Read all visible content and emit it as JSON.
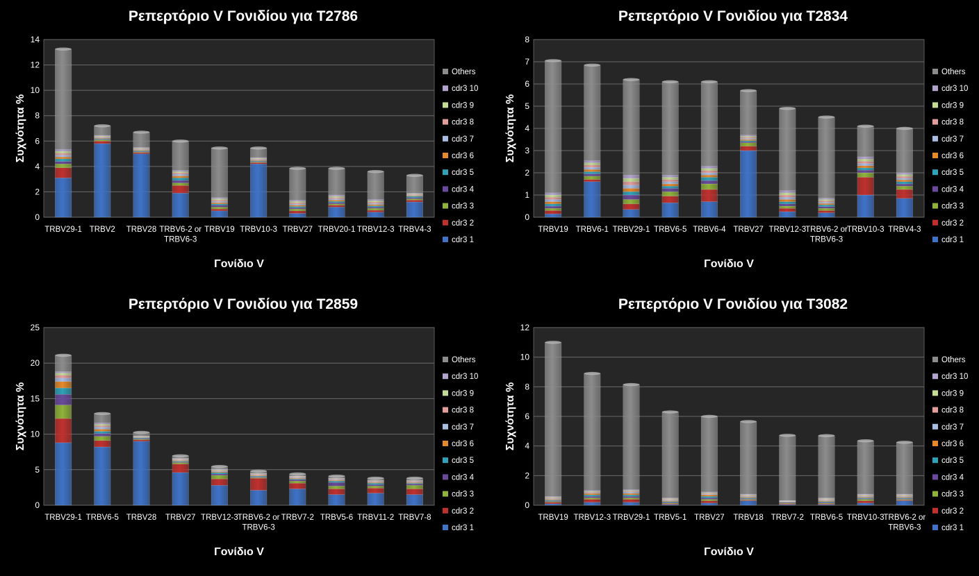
{
  "colors": {
    "cdr3 1": "#3f73c8",
    "cdr3 2": "#c0312e",
    "cdr3 3": "#8fb33a",
    "cdr3 4": "#6a4a9c",
    "cdr3 5": "#2fa2b8",
    "cdr3 6": "#e6892a",
    "cdr3 7": "#a9bde3",
    "cdr3 8": "#e39e9b",
    "cdr3 9": "#c4dc96",
    "cdr3 10": "#b3a4cf",
    "Others": "#8c8c8c"
  },
  "legend": [
    "Others",
    "cdr3 10",
    "cdr3 9",
    "cdr3 8",
    "cdr3 7",
    "cdr3 6",
    "cdr3 5",
    "cdr3 4",
    "cdr3 3",
    "cdr3 2",
    "cdr3 1"
  ],
  "chart_data": [
    {
      "type": "bar",
      "stacked": true,
      "title": "Ρεπερτόριο V Γονιδίου για Τ2786",
      "xlabel": "Γονίδιο V",
      "ylabel": "Συχνότητα %",
      "ylim": [
        0,
        14
      ],
      "yticks": [
        0,
        2,
        4,
        6,
        8,
        10,
        12,
        14
      ],
      "grid": true,
      "legend_position": "right",
      "categories": [
        "TRBV29-1",
        "TRBV2",
        "TRBV28",
        "TRBV6-2 or TRBV6-3",
        "TRBV19",
        "TRBV10-3",
        "TRBV27",
        "TRBV20-1",
        "TRBV12-3",
        "TRBV4-3"
      ],
      "series": [
        {
          "name": "cdr3 1",
          "values": [
            3.1,
            5.8,
            5.0,
            1.9,
            0.5,
            4.2,
            0.3,
            0.8,
            0.4,
            1.2
          ]
        },
        {
          "name": "cdr3 2",
          "values": [
            0.8,
            0.2,
            0.1,
            0.6,
            0.15,
            0.1,
            0.2,
            0.15,
            0.15,
            0.15
          ]
        },
        {
          "name": "cdr3 3",
          "values": [
            0.3,
            0.1,
            0.05,
            0.2,
            0.15,
            0.05,
            0.15,
            0.1,
            0.15,
            0.1
          ]
        },
        {
          "name": "cdr3 4",
          "values": [
            0.2,
            0.05,
            0.05,
            0.2,
            0.15,
            0.05,
            0.1,
            0.1,
            0.1,
            0.1
          ]
        },
        {
          "name": "cdr3 5",
          "values": [
            0.2,
            0.05,
            0.05,
            0.2,
            0.1,
            0.05,
            0.1,
            0.1,
            0.1,
            0.1
          ]
        },
        {
          "name": "cdr3 6",
          "values": [
            0.15,
            0.05,
            0.05,
            0.15,
            0.1,
            0.05,
            0.1,
            0.1,
            0.1,
            0.05
          ]
        },
        {
          "name": "cdr3 7",
          "values": [
            0.15,
            0.05,
            0.05,
            0.15,
            0.1,
            0.05,
            0.1,
            0.1,
            0.1,
            0.05
          ]
        },
        {
          "name": "cdr3 8",
          "values": [
            0.15,
            0.05,
            0.05,
            0.1,
            0.1,
            0.05,
            0.1,
            0.1,
            0.1,
            0.05
          ]
        },
        {
          "name": "cdr3 9",
          "values": [
            0.15,
            0.05,
            0.05,
            0.1,
            0.1,
            0.05,
            0.1,
            0.1,
            0.1,
            0.05
          ]
        },
        {
          "name": "cdr3 10",
          "values": [
            0.15,
            0.05,
            0.05,
            0.1,
            0.1,
            0.05,
            0.1,
            0.1,
            0.1,
            0.05
          ]
        },
        {
          "name": "Others",
          "values": [
            7.9,
            0.75,
            1.2,
            2.3,
            3.9,
            0.75,
            2.5,
            2.1,
            2.2,
            1.4
          ]
        }
      ]
    },
    {
      "type": "bar",
      "stacked": true,
      "title": "Ρεπερτόριο V Γονιδίου για Τ2834",
      "xlabel": "Γονίδιο V",
      "ylabel": "Συχνότητα %",
      "ylim": [
        0,
        8
      ],
      "yticks": [
        0,
        1,
        2,
        3,
        4,
        5,
        6,
        7,
        8
      ],
      "grid": true,
      "legend_position": "right",
      "categories": [
        "TRBV19",
        "TRBV6-1",
        "TRBV29-1",
        "TRBV6-5",
        "TRBV6-4",
        "TRBV27",
        "TRBV12-3",
        "TRBV6-2 or TRBV6-3",
        "TRBV10-3",
        "TRBV4-3"
      ],
      "series": [
        {
          "name": "cdr3 1",
          "values": [
            0.15,
            1.6,
            0.35,
            0.65,
            0.7,
            3.0,
            0.25,
            0.2,
            1.0,
            0.85
          ]
        },
        {
          "name": "cdr3 2",
          "values": [
            0.15,
            0.1,
            0.25,
            0.3,
            0.55,
            0.2,
            0.15,
            0.1,
            0.8,
            0.4
          ]
        },
        {
          "name": "cdr3 3",
          "values": [
            0.1,
            0.15,
            0.2,
            0.2,
            0.25,
            0.15,
            0.1,
            0.1,
            0.2,
            0.15
          ]
        },
        {
          "name": "cdr3 4",
          "values": [
            0.1,
            0.1,
            0.2,
            0.15,
            0.15,
            0.05,
            0.1,
            0.08,
            0.12,
            0.1
          ]
        },
        {
          "name": "cdr3 5",
          "values": [
            0.1,
            0.1,
            0.15,
            0.1,
            0.15,
            0.05,
            0.1,
            0.08,
            0.1,
            0.1
          ]
        },
        {
          "name": "cdr3 6",
          "values": [
            0.1,
            0.1,
            0.15,
            0.1,
            0.1,
            0.05,
            0.1,
            0.06,
            0.1,
            0.08
          ]
        },
        {
          "name": "cdr3 7",
          "values": [
            0.1,
            0.1,
            0.15,
            0.1,
            0.1,
            0.05,
            0.1,
            0.06,
            0.1,
            0.08
          ]
        },
        {
          "name": "cdr3 8",
          "values": [
            0.1,
            0.1,
            0.15,
            0.1,
            0.1,
            0.05,
            0.1,
            0.06,
            0.1,
            0.08
          ]
        },
        {
          "name": "cdr3 9",
          "values": [
            0.1,
            0.1,
            0.15,
            0.1,
            0.1,
            0.05,
            0.1,
            0.06,
            0.1,
            0.08
          ]
        },
        {
          "name": "cdr3 10",
          "values": [
            0.1,
            0.1,
            0.15,
            0.1,
            0.1,
            0.05,
            0.1,
            0.06,
            0.1,
            0.08
          ]
        },
        {
          "name": "Others",
          "values": [
            5.95,
            4.3,
            4.3,
            4.2,
            3.8,
            2.0,
            3.7,
            3.65,
            1.38,
            2.0
          ]
        }
      ]
    },
    {
      "type": "bar",
      "stacked": true,
      "title": "Ρεπερτόριο V Γονιδίου για Τ2859",
      "xlabel": "Γονίδιο V",
      "ylabel": "Συχνότητα %",
      "ylim": [
        0,
        25
      ],
      "yticks": [
        0,
        5,
        10,
        15,
        20,
        25
      ],
      "grid": true,
      "legend_position": "right",
      "categories": [
        "TRBV29-1",
        "TRBV6-5",
        "TRBV28",
        "TRBV27",
        "TRBV12-3",
        "TRBV6-2 or TRBV6-3",
        "TRBV7-2",
        "TRBV5-6",
        "TRBV11-2",
        "TRBV7-8"
      ],
      "series": [
        {
          "name": "cdr3 1",
          "values": [
            8.8,
            8.2,
            9.0,
            4.6,
            2.8,
            2.1,
            2.3,
            1.5,
            1.7,
            1.5
          ]
        },
        {
          "name": "cdr3 2",
          "values": [
            3.4,
            0.9,
            0.2,
            1.2,
            0.9,
            1.7,
            0.8,
            0.8,
            0.7,
            0.8
          ]
        },
        {
          "name": "cdr3 3",
          "values": [
            1.9,
            0.6,
            0.1,
            0.2,
            0.5,
            0.1,
            0.3,
            0.4,
            0.3,
            0.5
          ]
        },
        {
          "name": "cdr3 4",
          "values": [
            1.5,
            0.4,
            0.1,
            0.1,
            0.2,
            0.1,
            0.2,
            0.5,
            0.2,
            0.2
          ]
        },
        {
          "name": "cdr3 5",
          "values": [
            0.9,
            0.3,
            0.1,
            0.1,
            0.2,
            0.1,
            0.1,
            0.2,
            0.2,
            0.1
          ]
        },
        {
          "name": "cdr3 6",
          "values": [
            0.9,
            0.3,
            0.05,
            0.1,
            0.1,
            0.1,
            0.1,
            0.1,
            0.1,
            0.1
          ]
        },
        {
          "name": "cdr3 7",
          "values": [
            0.5,
            0.3,
            0.05,
            0.1,
            0.1,
            0.1,
            0.1,
            0.1,
            0.1,
            0.1
          ]
        },
        {
          "name": "cdr3 8",
          "values": [
            0.4,
            0.2,
            0.05,
            0.1,
            0.1,
            0.1,
            0.1,
            0.1,
            0.1,
            0.1
          ]
        },
        {
          "name": "cdr3 9",
          "values": [
            0.3,
            0.2,
            0.05,
            0.05,
            0.1,
            0.05,
            0.05,
            0.05,
            0.05,
            0.05
          ]
        },
        {
          "name": "cdr3 10",
          "values": [
            0.2,
            0.2,
            0.05,
            0.05,
            0.1,
            0.05,
            0.05,
            0.05,
            0.05,
            0.05
          ]
        },
        {
          "name": "Others",
          "values": [
            2.3,
            1.3,
            0.5,
            0.35,
            0.35,
            0.3,
            0.3,
            0.3,
            0.3,
            0.3
          ]
        }
      ]
    },
    {
      "type": "bar",
      "stacked": true,
      "title": "Ρεπερτόριο V Γονιδίου για Τ3082",
      "xlabel": "Γονίδιο V",
      "ylabel": "Συχνότητα %",
      "ylim": [
        0,
        12
      ],
      "yticks": [
        0,
        2,
        4,
        6,
        8,
        10,
        12
      ],
      "grid": true,
      "legend_position": "right",
      "categories": [
        "TRBV19",
        "TRBV12-3",
        "TRBV29-1",
        "TRBV5-1",
        "TRBV27",
        "TRBV18",
        "TRBV7-2",
        "TRBV6-5",
        "TRBV10-3",
        "TRBV6-2 or TRBV6-3"
      ],
      "series": [
        {
          "name": "cdr3 1",
          "values": [
            0.1,
            0.2,
            0.2,
            0.05,
            0.15,
            0.3,
            0.05,
            0.05,
            0.15,
            0.3
          ]
        },
        {
          "name": "cdr3 2",
          "values": [
            0.1,
            0.2,
            0.2,
            0.05,
            0.15,
            0.05,
            0.05,
            0.05,
            0.15,
            0.05
          ]
        },
        {
          "name": "cdr3 3",
          "values": [
            0.05,
            0.1,
            0.1,
            0.05,
            0.1,
            0.05,
            0.05,
            0.05,
            0.1,
            0.05
          ]
        },
        {
          "name": "cdr3 4",
          "values": [
            0.05,
            0.1,
            0.1,
            0.05,
            0.1,
            0.05,
            0.05,
            0.05,
            0.05,
            0.05
          ]
        },
        {
          "name": "cdr3 5",
          "values": [
            0.05,
            0.1,
            0.1,
            0.05,
            0.1,
            0.05,
            0.02,
            0.05,
            0.05,
            0.05
          ]
        },
        {
          "name": "cdr3 6",
          "values": [
            0.05,
            0.1,
            0.1,
            0.05,
            0.1,
            0.05,
            0.02,
            0.05,
            0.05,
            0.05
          ]
        },
        {
          "name": "cdr3 7",
          "values": [
            0.05,
            0.05,
            0.1,
            0.05,
            0.05,
            0.05,
            0.02,
            0.05,
            0.05,
            0.05
          ]
        },
        {
          "name": "cdr3 8",
          "values": [
            0.05,
            0.05,
            0.05,
            0.05,
            0.05,
            0.05,
            0.02,
            0.05,
            0.05,
            0.05
          ]
        },
        {
          "name": "cdr3 9",
          "values": [
            0.05,
            0.05,
            0.05,
            0.05,
            0.05,
            0.05,
            0.02,
            0.05,
            0.05,
            0.05
          ]
        },
        {
          "name": "cdr3 10",
          "values": [
            0.05,
            0.05,
            0.05,
            0.05,
            0.05,
            0.05,
            0.02,
            0.05,
            0.05,
            0.05
          ]
        },
        {
          "name": "Others",
          "values": [
            10.4,
            7.9,
            7.1,
            5.8,
            5.1,
            4.9,
            4.4,
            4.2,
            3.6,
            3.5
          ]
        }
      ]
    }
  ]
}
